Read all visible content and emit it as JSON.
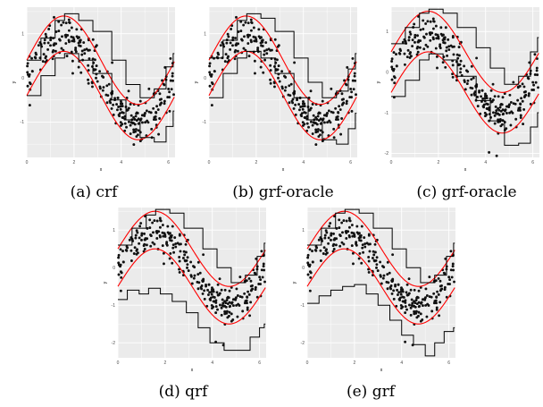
{
  "charts": [
    {
      "id": "a",
      "caption": "(a) crf"
    },
    {
      "id": "b",
      "caption": "(b) grf-oracle"
    },
    {
      "id": "c",
      "caption": "(c) grf-oracle"
    },
    {
      "id": "d",
      "caption": "(d) qrf"
    },
    {
      "id": "e",
      "caption": "(e) grf"
    }
  ],
  "chart_data": [
    {
      "type": "scatter",
      "caption": "(a) crf",
      "xlabel": "x",
      "ylabel": "y",
      "xlim": [
        0,
        6.28
      ],
      "ylim": [
        -1.8,
        1.6
      ],
      "xticks": [
        0,
        2,
        4,
        6
      ],
      "yticks": [
        -1,
        0,
        1
      ],
      "grid": true,
      "background": "#ebebeb",
      "true_quantile_curves": {
        "color": "#ff0000",
        "upper": "sin(x)+0.4",
        "lower": "sin(x)-0.4"
      },
      "estimated_bounds": {
        "color": "#000000",
        "style": "step",
        "upper": {
          "x": [
            0,
            0.6,
            1.2,
            1.6,
            2.2,
            2.8,
            3.6,
            4.2,
            4.8,
            5.4,
            5.9,
            6.2
          ],
          "y": [
            0.4,
            0.9,
            1.3,
            1.45,
            1.3,
            1.05,
            0.4,
            -0.15,
            -0.45,
            -0.25,
            0.25,
            0.55
          ]
        },
        "lower": {
          "x": [
            0,
            0.6,
            1.2,
            1.6,
            2.2,
            2.8,
            3.6,
            4.2,
            4.8,
            5.4,
            5.9,
            6.2
          ],
          "y": [
            -0.4,
            0.05,
            0.45,
            0.55,
            0.4,
            0.1,
            -0.5,
            -0.95,
            -1.35,
            -1.45,
            -1.1,
            -0.75
          ]
        }
      },
      "points": "~300 noisy observations scattered between the curves"
    },
    {
      "type": "scatter",
      "caption": "(b) grf-oracle",
      "xlabel": "x",
      "ylabel": "y",
      "xlim": [
        0,
        6.28
      ],
      "ylim": [
        -1.8,
        1.6
      ],
      "xticks": [
        0,
        2,
        4,
        6
      ],
      "yticks": [
        -1,
        0,
        1
      ],
      "grid": true,
      "background": "#ebebeb",
      "true_quantile_curves": {
        "color": "#ff0000",
        "upper": "sin(x)+0.4",
        "lower": "sin(x)-0.4"
      },
      "estimated_bounds": {
        "color": "#000000",
        "style": "step",
        "upper": {
          "x": [
            0,
            0.6,
            1.2,
            1.6,
            2.2,
            2.8,
            3.6,
            4.2,
            4.8,
            5.4,
            5.9,
            6.2
          ],
          "y": [
            0.45,
            0.85,
            1.3,
            1.45,
            1.35,
            1.05,
            0.45,
            -0.1,
            -0.45,
            -0.3,
            0.2,
            0.55
          ]
        },
        "lower": {
          "x": [
            0,
            0.6,
            1.2,
            1.6,
            2.2,
            2.8,
            3.6,
            4.2,
            4.8,
            5.4,
            5.9,
            6.2
          ],
          "y": [
            -0.45,
            0.1,
            0.45,
            0.6,
            0.45,
            0.1,
            -0.45,
            -0.95,
            -1.4,
            -1.5,
            -1.15,
            -0.8
          ]
        }
      }
    },
    {
      "type": "scatter",
      "caption": "(c) grf-oracle",
      "xlabel": "x",
      "ylabel": "y",
      "xlim": [
        0,
        6.28
      ],
      "ylim": [
        -2.1,
        1.6
      ],
      "xticks": [
        0,
        2,
        4,
        6
      ],
      "yticks": [
        -2,
        -1,
        0,
        1
      ],
      "grid": true,
      "background": "#ebebeb",
      "true_quantile_curves": {
        "color": "#ff0000",
        "upper": "sin(x)+0.5",
        "lower": "sin(x)-0.5"
      },
      "estimated_bounds": {
        "color": "#000000",
        "style": "step",
        "upper": {
          "x": [
            0,
            0.6,
            1.2,
            1.6,
            2.2,
            2.8,
            3.6,
            4.2,
            4.8,
            5.4,
            5.9,
            6.2
          ],
          "y": [
            0.7,
            1.1,
            1.45,
            1.55,
            1.45,
            1.1,
            0.6,
            0.1,
            -0.3,
            -0.1,
            0.5,
            0.85
          ]
        },
        "lower": {
          "x": [
            0,
            0.6,
            1.2,
            1.6,
            2.2,
            2.8,
            3.6,
            4.2,
            4.8,
            5.4,
            5.9,
            6.2
          ],
          "y": [
            -0.6,
            -0.2,
            0.3,
            0.45,
            0.3,
            -0.1,
            -0.7,
            -1.2,
            -1.8,
            -1.75,
            -1.35,
            -1.0
          ]
        }
      }
    },
    {
      "type": "scatter",
      "caption": "(d) qrf",
      "xlabel": "x",
      "ylabel": "y",
      "xlim": [
        0,
        6.28
      ],
      "ylim": [
        -2.4,
        1.6
      ],
      "xticks": [
        0,
        2,
        4,
        6
      ],
      "yticks": [
        -2,
        -1,
        0,
        1
      ],
      "grid": true,
      "background": "#ebebeb",
      "true_quantile_curves": {
        "color": "#ff0000",
        "upper": "sin(x)+0.5",
        "lower": "sin(x)-0.5"
      },
      "estimated_bounds": {
        "color": "#000000",
        "style": "step",
        "upper": {
          "x": [
            0,
            0.6,
            1.2,
            1.6,
            2.2,
            2.8,
            3.6,
            4.2,
            4.8,
            5.4,
            5.9,
            6.2
          ],
          "y": [
            0.6,
            1.05,
            1.4,
            1.55,
            1.45,
            1.05,
            0.5,
            0.0,
            -0.4,
            -0.2,
            0.3,
            0.65
          ]
        },
        "lower": {
          "x": [
            0,
            0.4,
            0.9,
            1.3,
            1.8,
            2.3,
            2.9,
            3.4,
            3.9,
            4.5,
            5.1,
            5.6,
            6.0,
            6.2
          ],
          "y": [
            -0.85,
            -0.6,
            -0.7,
            -0.55,
            -0.7,
            -0.9,
            -1.2,
            -1.6,
            -2.0,
            -2.2,
            -2.2,
            -1.85,
            -1.6,
            -1.5
          ]
        }
      }
    },
    {
      "type": "scatter",
      "caption": "(e) grf",
      "xlabel": "x",
      "ylabel": "y",
      "xlim": [
        0,
        6.28
      ],
      "ylim": [
        -2.4,
        1.6
      ],
      "xticks": [
        0,
        2,
        4,
        6
      ],
      "yticks": [
        -2,
        -1,
        0,
        1
      ],
      "grid": true,
      "background": "#ebebeb",
      "true_quantile_curves": {
        "color": "#ff0000",
        "upper": "sin(x)+0.5",
        "lower": "sin(x)-0.5"
      },
      "estimated_bounds": {
        "color": "#000000",
        "style": "step",
        "upper": {
          "x": [
            0,
            0.6,
            1.2,
            1.6,
            2.2,
            2.8,
            3.6,
            4.2,
            4.8,
            5.4,
            5.9,
            6.2
          ],
          "y": [
            0.6,
            1.05,
            1.45,
            1.55,
            1.45,
            1.05,
            0.5,
            0.0,
            -0.4,
            -0.2,
            0.3,
            0.65
          ]
        },
        "lower": {
          "x": [
            0,
            0.5,
            1.0,
            1.5,
            2.0,
            2.5,
            3.0,
            3.5,
            4.0,
            4.5,
            5.0,
            5.4,
            5.8,
            6.2
          ],
          "y": [
            -0.95,
            -0.75,
            -0.6,
            -0.5,
            -0.45,
            -0.7,
            -1.0,
            -1.4,
            -1.8,
            -2.05,
            -2.35,
            -2.0,
            -1.7,
            -1.6
          ]
        }
      }
    }
  ]
}
